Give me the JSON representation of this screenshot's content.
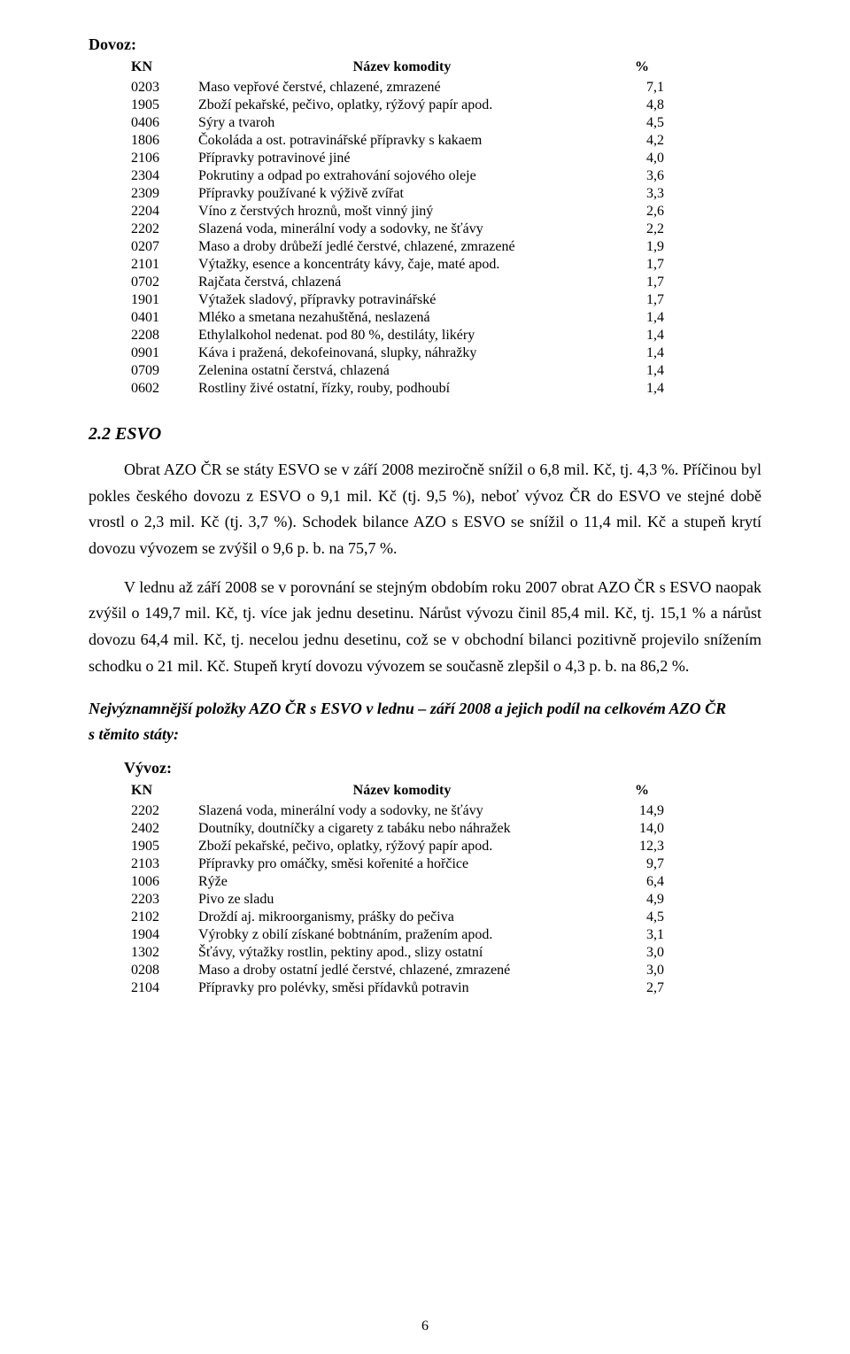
{
  "dovoz": {
    "label": "Dovoz:",
    "headers": {
      "kn": "KN",
      "name": "Název komodity",
      "pct": "%"
    },
    "rows": [
      {
        "code": "0203",
        "name": "Maso vepřové čerstvé, chlazené, zmrazené",
        "pct": "7,1"
      },
      {
        "code": "1905",
        "name": "Zboží pekařské, pečivo, oplatky, rýžový papír apod.",
        "pct": "4,8"
      },
      {
        "code": "0406",
        "name": "Sýry a tvaroh",
        "pct": "4,5"
      },
      {
        "code": "1806",
        "name": "Čokoláda a ost. potravinářské přípravky s kakaem",
        "pct": "4,2"
      },
      {
        "code": "2106",
        "name": "Přípravky potravinové jiné",
        "pct": "4,0"
      },
      {
        "code": "2304",
        "name": "Pokrutiny a odpad po extrahování sojového oleje",
        "pct": "3,6"
      },
      {
        "code": "2309",
        "name": "Přípravky používané k výživě zvířat",
        "pct": "3,3"
      },
      {
        "code": "2204",
        "name": "Víno z čerstvých hroznů, mošt vinný jiný",
        "pct": "2,6"
      },
      {
        "code": "2202",
        "name": "Slazená voda, minerální vody a sodovky, ne šťávy",
        "pct": "2,2"
      },
      {
        "code": "0207",
        "name": "Maso a droby drůbeží jedlé čerstvé, chlazené, zmrazené",
        "pct": "1,9"
      },
      {
        "code": "2101",
        "name": "Výtažky, esence a koncentráty kávy, čaje, maté apod.",
        "pct": "1,7"
      },
      {
        "code": "0702",
        "name": "Rajčata čerstvá, chlazená",
        "pct": "1,7"
      },
      {
        "code": "1901",
        "name": "Výtažek sladový, přípravky potravinářské",
        "pct": "1,7"
      },
      {
        "code": "0401",
        "name": "Mléko a smetana nezahuštěná, neslazená",
        "pct": "1,4"
      },
      {
        "code": "2208",
        "name": "Ethylalkohol nedenat. pod 80 %, destiláty, likéry",
        "pct": "1,4"
      },
      {
        "code": "0901",
        "name": "Káva i pražená, dekofeinovaná, slupky, náhražky",
        "pct": "1,4"
      },
      {
        "code": "0709",
        "name": "Zelenina ostatní čerstvá, chlazená",
        "pct": "1,4"
      },
      {
        "code": "0602",
        "name": "Rostliny živé ostatní, řízky, rouby, podhoubí",
        "pct": "1,4"
      }
    ]
  },
  "esvo": {
    "heading": "2.2  ESVO",
    "para1": "Obrat AZO ČR se státy ESVO se v září 2008 meziročně snížil o 6,8 mil. Kč, tj. 4,3 %. Příčinou byl pokles českého dovozu z ESVO o 9,1 mil. Kč (tj. 9,5 %), neboť vývoz ČR do ESVO ve stejné době vrostl o 2,3 mil. Kč (tj. 3,7 %). Schodek bilance AZO s ESVO se snížil o 11,4 mil. Kč a stupeň krytí dovozu vývozem se zvýšil o 9,6 p. b. na 75,7 %.",
    "para2": "V lednu až září 2008 se v porovnání se stejným obdobím roku 2007 obrat AZO ČR s ESVO naopak zvýšil o 149,7 mil. Kč, tj. více jak jednu desetinu. Nárůst vývozu činil 85,4 mil. Kč, tj. 15,1 % a nárůst dovozu 64,4 mil. Kč, tj. necelou jednu desetinu, což se v obchodní bilanci pozitivně projevilo snížením schodku o 21 mil. Kč. Stupeň krytí dovozu vývozem se současně zlepšil o 4,3 p. b. na 86,2 %.",
    "subheading_bold": "Nejvýznamnější položky AZO ČR s ESVO v",
    "subheading_bold2": "lednu – září 2008 a jejich podíl na celkovém AZO ČR s těmito státy:"
  },
  "vyvoz": {
    "label": "Vývoz:",
    "headers": {
      "kn": "KN",
      "name": "Název komodity",
      "pct": "%"
    },
    "rows": [
      {
        "code": "2202",
        "name": "Slazená voda, minerální vody a sodovky, ne šťávy",
        "pct": "14,9"
      },
      {
        "code": "2402",
        "name": "Doutníky, doutníčky a cigarety z tabáku nebo náhražek",
        "pct": "14,0"
      },
      {
        "code": "1905",
        "name": "Zboží pekařské, pečivo, oplatky, rýžový papír apod.",
        "pct": "12,3"
      },
      {
        "code": "2103",
        "name": "Přípravky pro omáčky, směsi kořenité a hořčice",
        "pct": "9,7"
      },
      {
        "code": "1006",
        "name": "Rýže",
        "pct": "6,4"
      },
      {
        "code": "2203",
        "name": "Pivo ze sladu",
        "pct": "4,9"
      },
      {
        "code": "2102",
        "name": "Droždí aj. mikroorganismy, prášky do pečiva",
        "pct": "4,5"
      },
      {
        "code": "1904",
        "name": "Výrobky z obilí získané bobtnáním, pražením apod.",
        "pct": "3,1"
      },
      {
        "code": "1302",
        "name": "Šťávy, výtažky rostlin, pektiny apod., slizy ostatní",
        "pct": "3,0"
      },
      {
        "code": "0208",
        "name": "Maso a droby ostatní jedlé čerstvé, chlazené, zmrazené",
        "pct": "3,0"
      },
      {
        "code": "2104",
        "name": "Přípravky pro polévky, směsi přídavků potravin",
        "pct": "2,7"
      }
    ]
  },
  "page_number": "6"
}
